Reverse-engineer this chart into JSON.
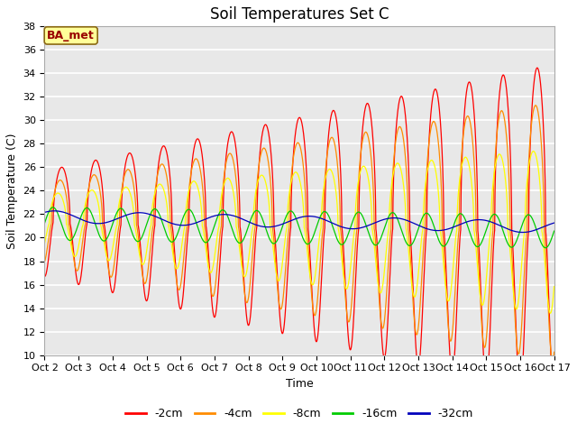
{
  "title": "Soil Temperatures Set C",
  "xlabel": "Time",
  "ylabel": "Soil Temperature (C)",
  "ylim": [
    10,
    38
  ],
  "yticks": [
    10,
    12,
    14,
    16,
    18,
    20,
    22,
    24,
    26,
    28,
    30,
    32,
    34,
    36,
    38
  ],
  "x_labels": [
    "Oct 2",
    "Oct 3",
    "Oct 4",
    "Oct 5",
    "Oct 6",
    "Oct 7",
    "Oct 8",
    "Oct 9",
    "Oct 10",
    "Oct 11",
    "Oct 12",
    "Oct 13",
    "Oct 14",
    "Oct 15",
    "Oct 16",
    "Oct 17"
  ],
  "annotation_text": "BA_met",
  "annotation_bg": "#FFFF99",
  "annotation_border": "#8B6914",
  "annotation_text_color": "#990000",
  "series": [
    {
      "label": "-2cm",
      "color": "#FF0000"
    },
    {
      "label": "-4cm",
      "color": "#FF8C00"
    },
    {
      "label": "-8cm",
      "color": "#FFFF00"
    },
    {
      "label": "-16cm",
      "color": "#00CC00"
    },
    {
      "label": "-32cm",
      "color": "#0000BB"
    }
  ],
  "fig_bg": "#FFFFFF",
  "plot_bg": "#E8E8E8",
  "grid_color": "#FFFFFF",
  "title_fontsize": 12,
  "axis_label_fontsize": 9,
  "tick_fontsize": 8,
  "legend_fontsize": 9
}
